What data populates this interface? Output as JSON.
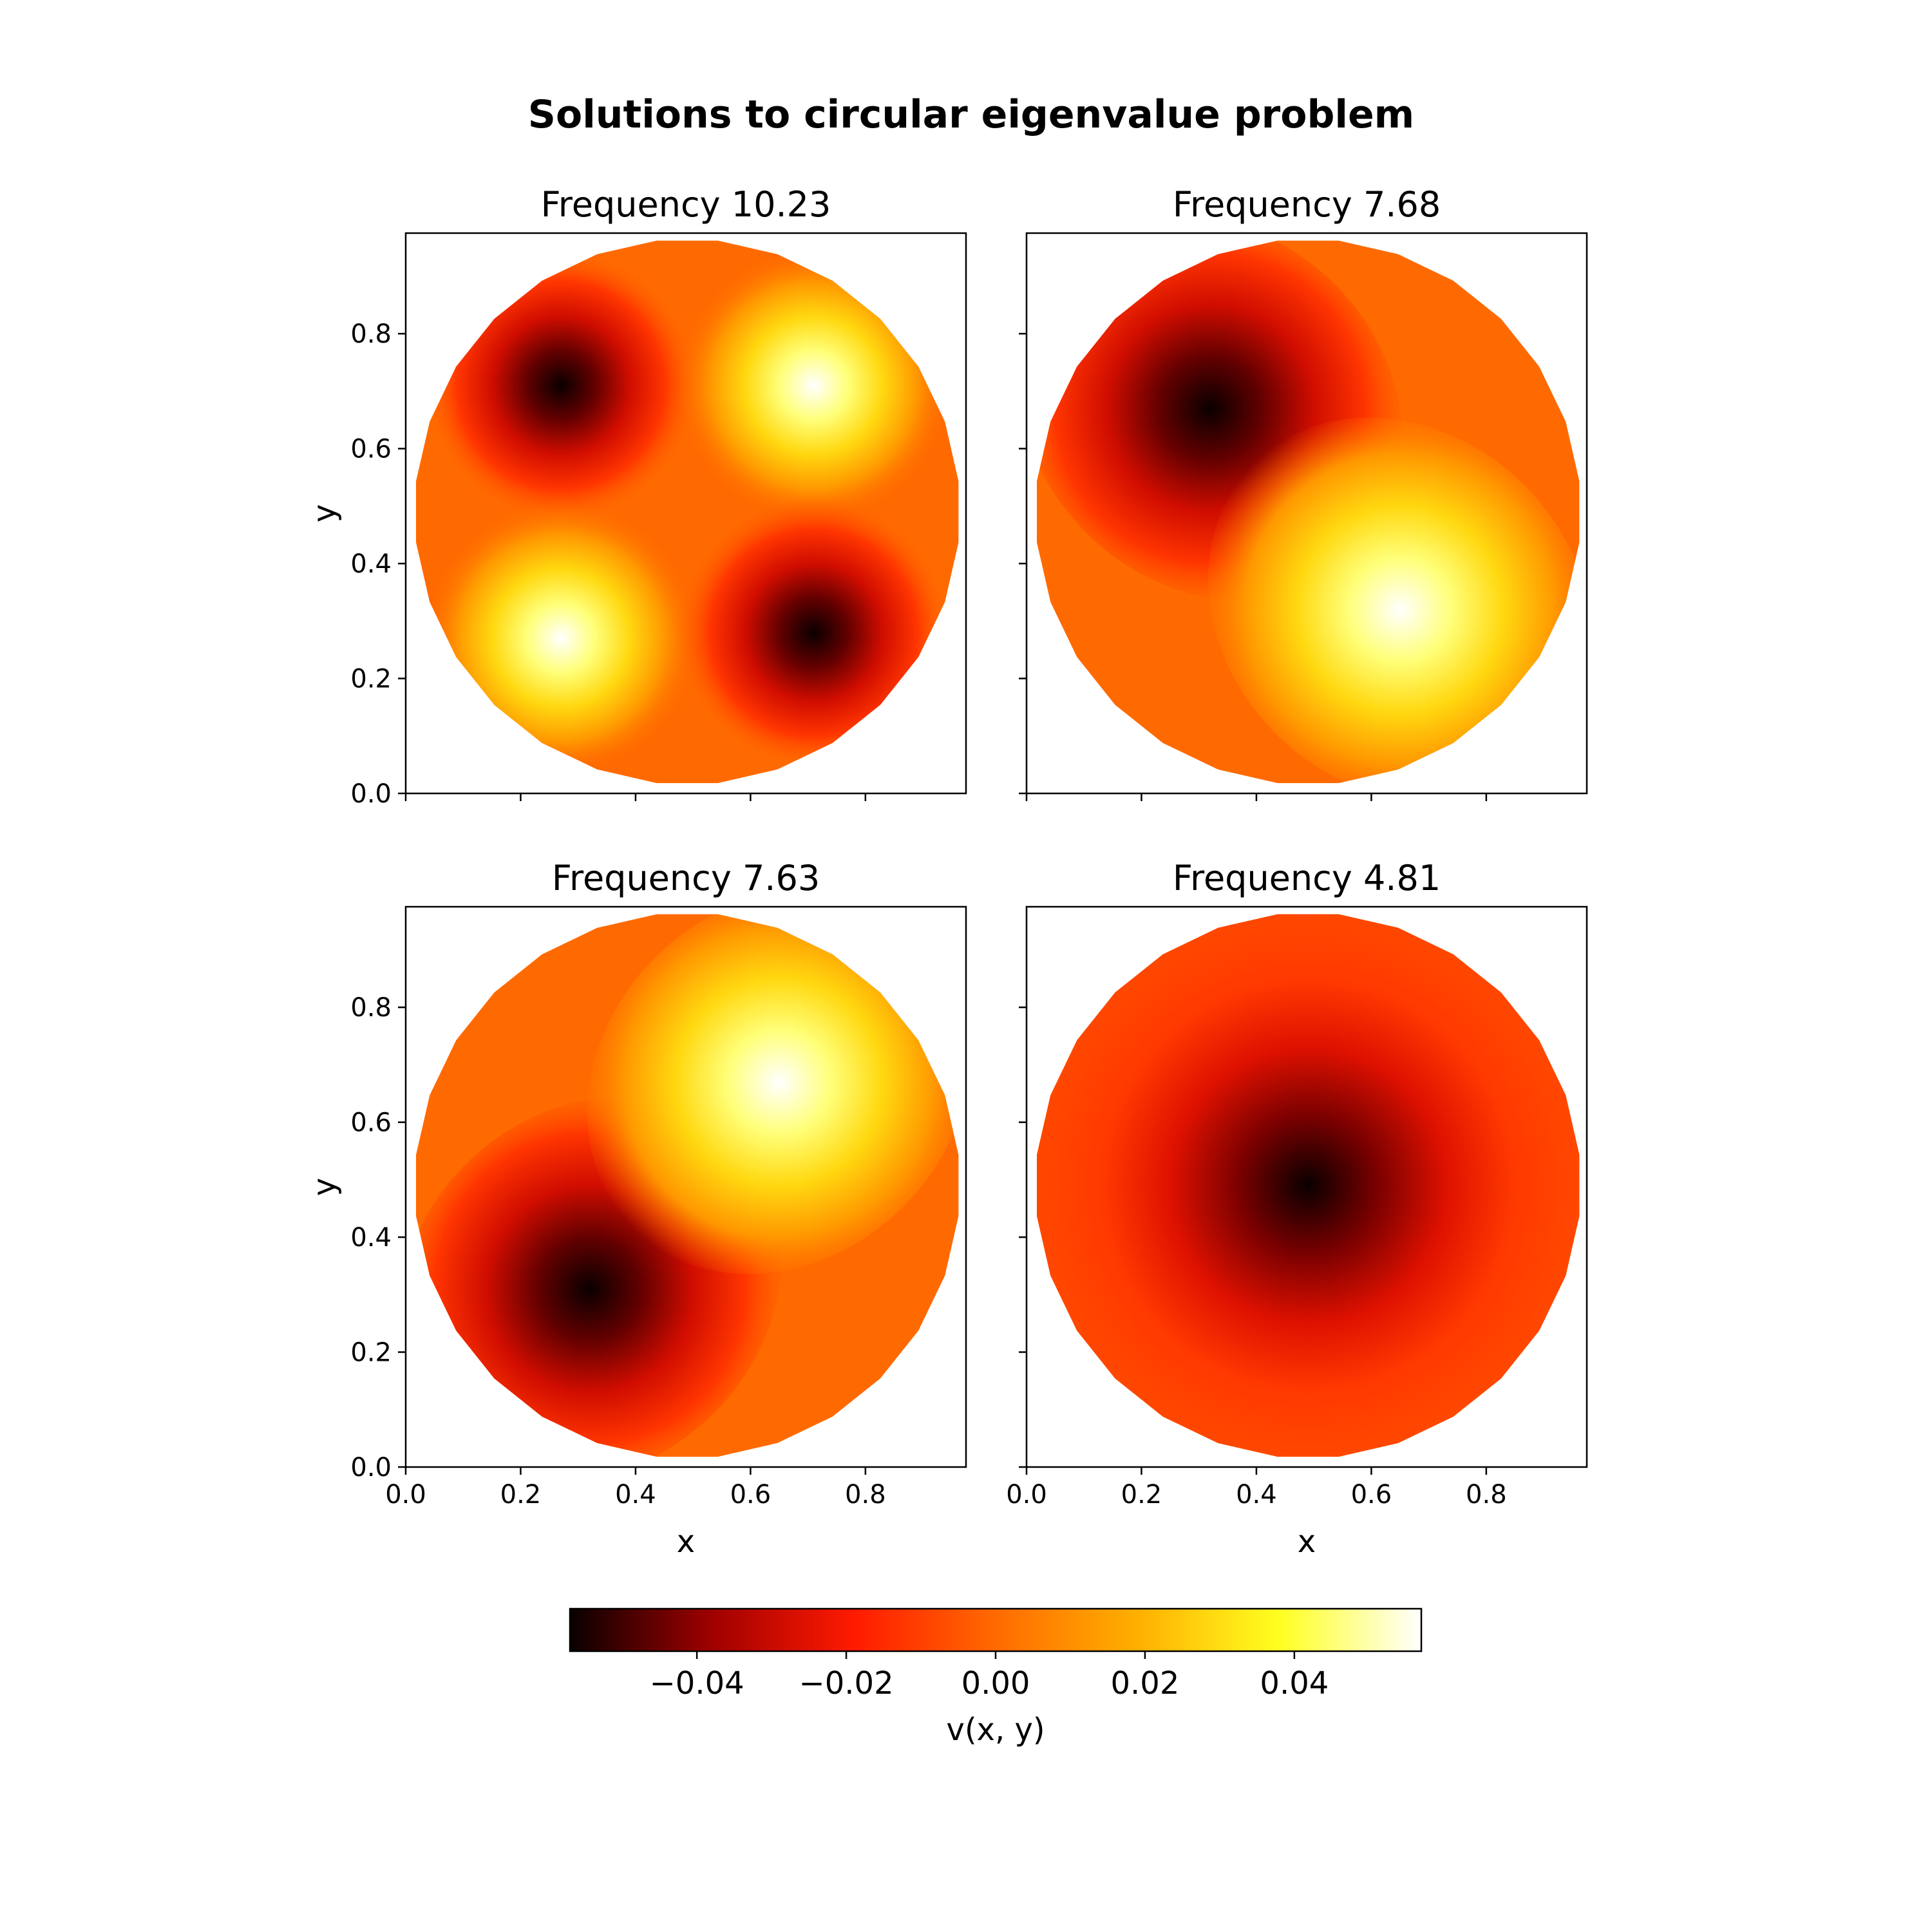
{
  "figure": {
    "title": "Solutions to circular eigenvalue problem",
    "layout": "2x2 grid of filled contour maps on a disc, shared x and y axes, shared horizontal colorbar below"
  },
  "colors": {
    "colormap": "hot",
    "stops": [
      "#0a0000",
      "#a00000",
      "#ff1a00",
      "#ff6a00",
      "#ffb000",
      "#ffff20",
      "#ffffff"
    ]
  },
  "chart_data": [
    {
      "type": "heatmap",
      "title": "Frequency 10.23",
      "xlabel": "",
      "ylabel": "y",
      "xlim": [
        0,
        0.975
      ],
      "ylim": [
        0,
        0.975
      ],
      "xticks": [
        "",
        "",
        "",
        "",
        ""
      ],
      "yticks": [
        "0.0",
        "0.2",
        "0.4",
        "0.6",
        "0.8"
      ],
      "mode": "quadrupole",
      "extrema": [
        {
          "x": 0.27,
          "y": 0.71,
          "v": -0.057
        },
        {
          "x": 0.71,
          "y": 0.71,
          "v": 0.057
        },
        {
          "x": 0.27,
          "y": 0.27,
          "v": 0.057
        },
        {
          "x": 0.71,
          "y": 0.28,
          "v": -0.057
        }
      ]
    },
    {
      "type": "heatmap",
      "title": "Frequency 7.68",
      "xlabel": "",
      "ylabel": "",
      "xlim": [
        0,
        0.975
      ],
      "ylim": [
        0,
        0.975
      ],
      "xticks": [
        "",
        "",
        "",
        "",
        ""
      ],
      "yticks": [
        "",
        "",
        "",
        "",
        ""
      ],
      "mode": "dipole",
      "extrema": [
        {
          "x": 0.32,
          "y": 0.67,
          "v": -0.057
        },
        {
          "x": 0.65,
          "y": 0.32,
          "v": 0.057
        }
      ]
    },
    {
      "type": "heatmap",
      "title": "Frequency 7.63",
      "xlabel": "x",
      "ylabel": "y",
      "xlim": [
        0,
        0.975
      ],
      "ylim": [
        0,
        0.975
      ],
      "xticks": [
        "0.0",
        "0.2",
        "0.4",
        "0.6",
        "0.8"
      ],
      "yticks": [
        "0.0",
        "0.2",
        "0.4",
        "0.6",
        "0.8"
      ],
      "mode": "dipole",
      "extrema": [
        {
          "x": 0.32,
          "y": 0.31,
          "v": -0.057
        },
        {
          "x": 0.65,
          "y": 0.67,
          "v": 0.057
        }
      ]
    },
    {
      "type": "heatmap",
      "title": "Frequency 4.81",
      "xlabel": "x",
      "ylabel": "",
      "xlim": [
        0,
        0.975
      ],
      "ylim": [
        0,
        0.975
      ],
      "xticks": [
        "0.0",
        "0.2",
        "0.4",
        "0.6",
        "0.8"
      ],
      "yticks": [
        "",
        "",
        "",
        "",
        ""
      ],
      "mode": "fundamental",
      "extrema": [
        {
          "x": 0.49,
          "y": 0.49,
          "v": -0.057
        }
      ]
    }
  ],
  "colorbar": {
    "label": "v(x, y)",
    "vmin": -0.057,
    "vmax": 0.057,
    "ticks": [
      {
        "value": -0.04,
        "label": "−0.04"
      },
      {
        "value": -0.02,
        "label": "−0.02"
      },
      {
        "value": 0.0,
        "label": "0.00"
      },
      {
        "value": 0.02,
        "label": "0.02"
      },
      {
        "value": 0.04,
        "label": "0.04"
      }
    ]
  }
}
